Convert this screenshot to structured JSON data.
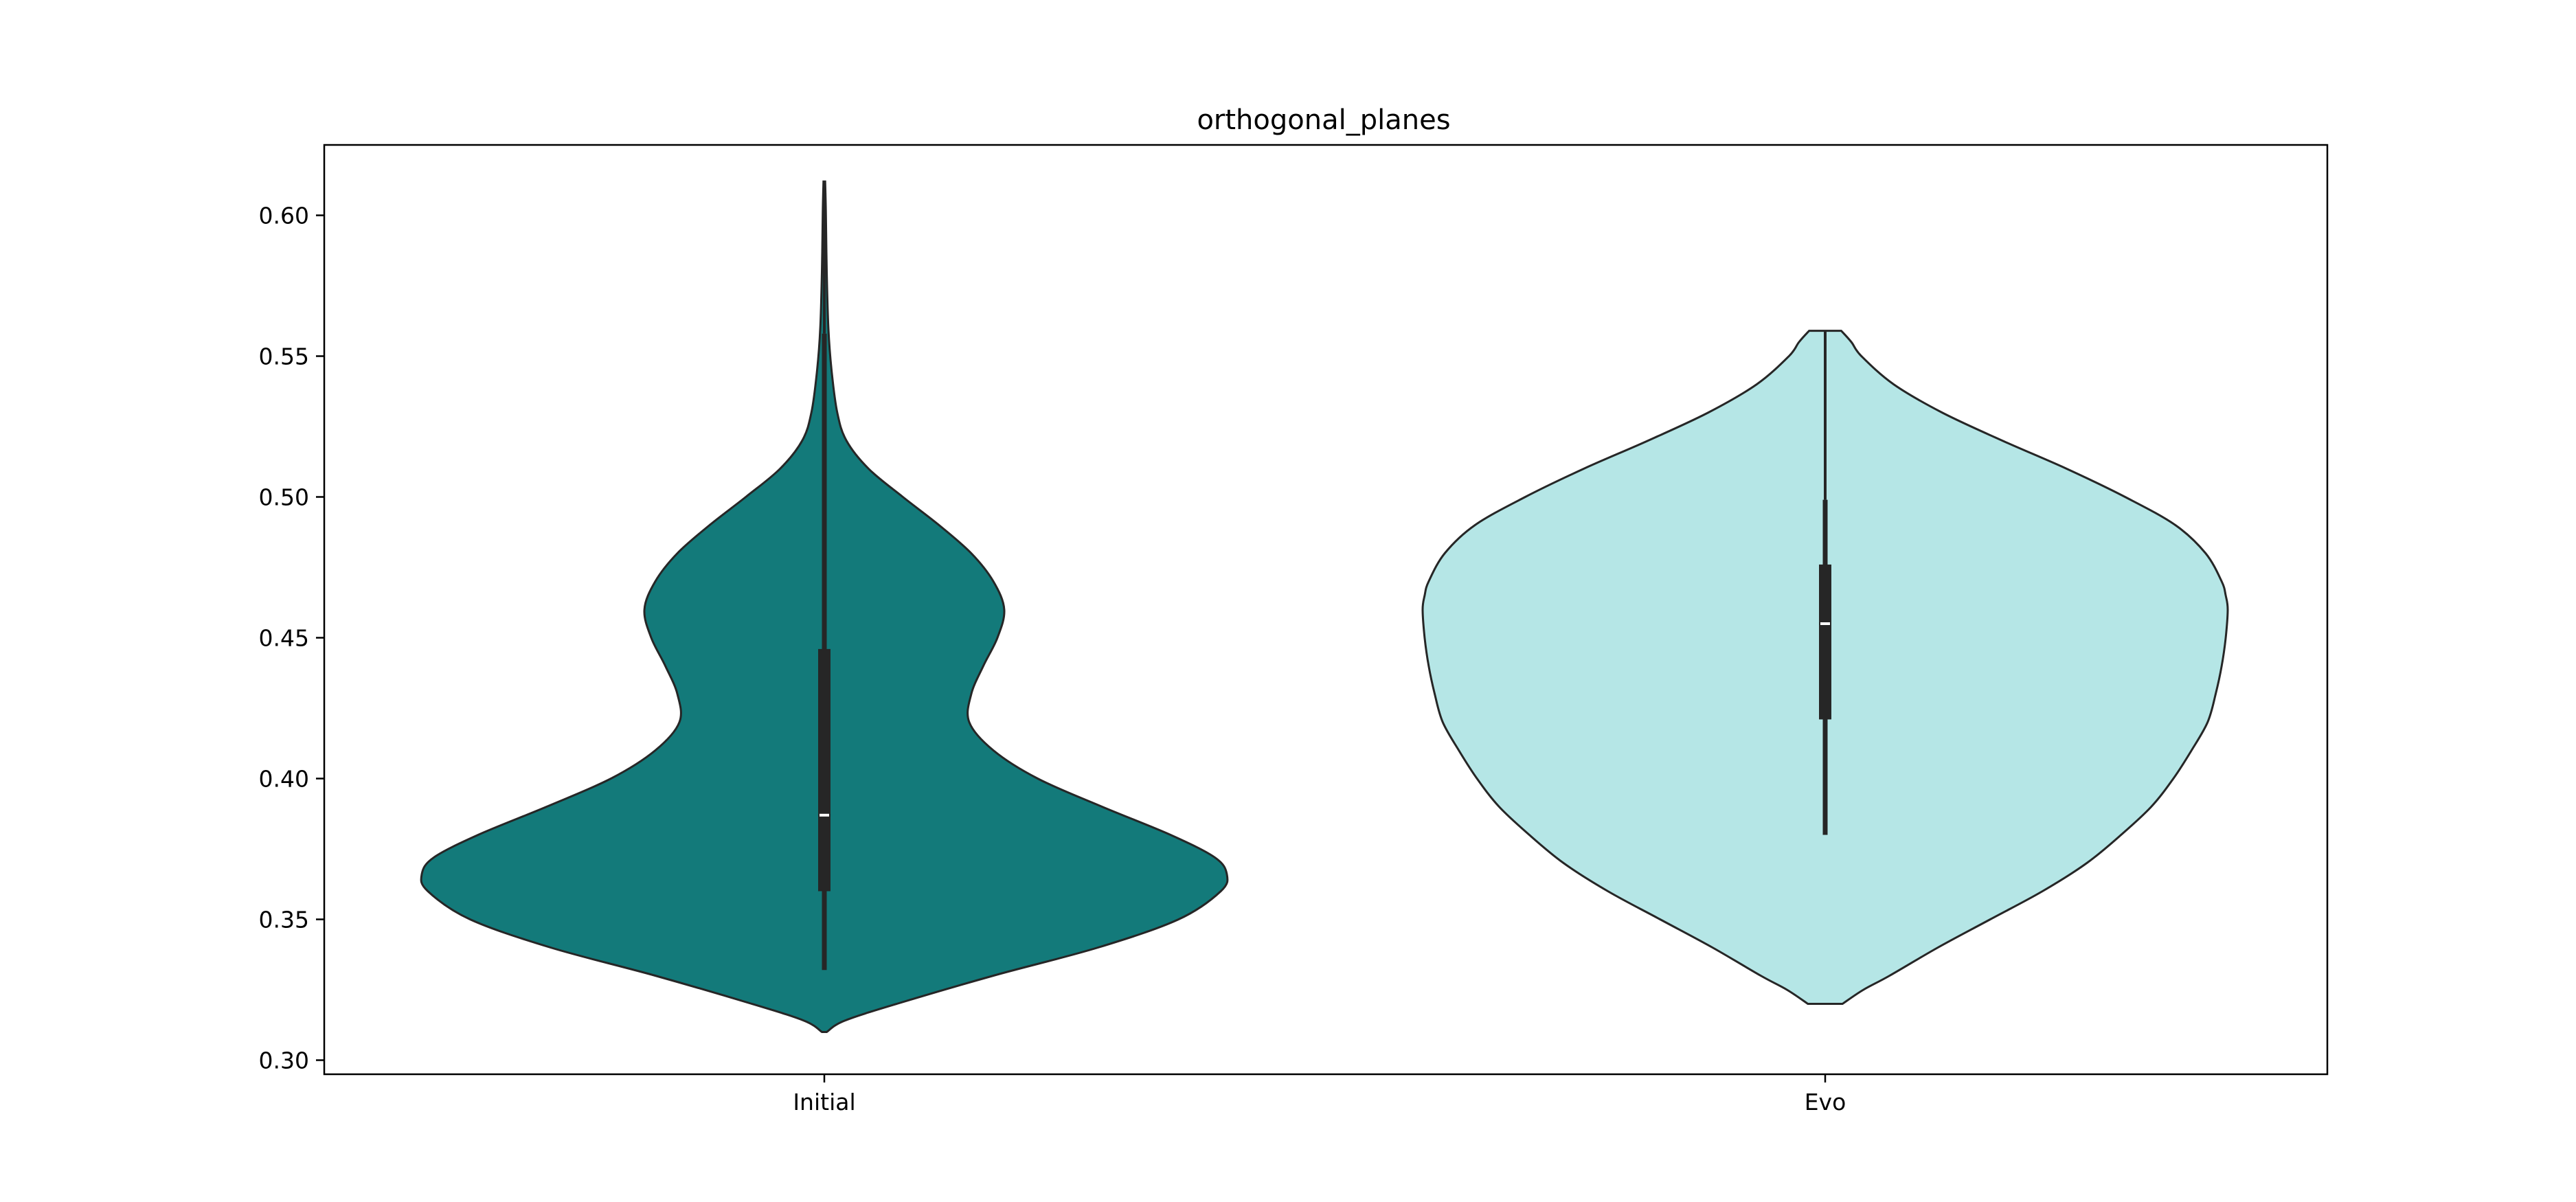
{
  "chart_data": {
    "type": "violin",
    "title": "orthogonal_planes",
    "xlabel": "",
    "ylabel": "",
    "categories": [
      "Initial",
      "Evo"
    ],
    "ylim": [
      0.295,
      0.625
    ],
    "yticks": [
      0.3,
      0.35,
      0.4,
      0.45,
      0.5,
      0.55,
      0.6
    ],
    "ytick_labels": [
      "0.30",
      "0.35",
      "0.40",
      "0.45",
      "0.50",
      "0.55",
      "0.60"
    ],
    "grid": false,
    "series": [
      {
        "category": "Initial",
        "color": "#137a7a",
        "range": [
          0.31,
          0.612
        ],
        "whisker": [
          0.332,
          0.558
        ],
        "quartiles": [
          0.36,
          0.446
        ],
        "median": 0.387,
        "density": [
          [
            0.31,
            0.006
          ],
          [
            0.314,
            0.05
          ],
          [
            0.32,
            0.18
          ],
          [
            0.33,
            0.42
          ],
          [
            0.34,
            0.68
          ],
          [
            0.35,
            0.88
          ],
          [
            0.36,
            0.985
          ],
          [
            0.366,
            1.0
          ],
          [
            0.372,
            0.97
          ],
          [
            0.38,
            0.86
          ],
          [
            0.39,
            0.69
          ],
          [
            0.4,
            0.53
          ],
          [
            0.41,
            0.42
          ],
          [
            0.42,
            0.36
          ],
          [
            0.43,
            0.365
          ],
          [
            0.44,
            0.395
          ],
          [
            0.45,
            0.43
          ],
          [
            0.46,
            0.447
          ],
          [
            0.47,
            0.42
          ],
          [
            0.48,
            0.365
          ],
          [
            0.49,
            0.285
          ],
          [
            0.5,
            0.195
          ],
          [
            0.51,
            0.11
          ],
          [
            0.52,
            0.055
          ],
          [
            0.53,
            0.032
          ],
          [
            0.545,
            0.018
          ],
          [
            0.56,
            0.01
          ],
          [
            0.58,
            0.006
          ],
          [
            0.6,
            0.004
          ],
          [
            0.612,
            0.002
          ]
        ]
      },
      {
        "category": "Evo",
        "color": "#b5e6e6",
        "range": [
          0.32,
          0.559
        ],
        "whisker": [
          0.38,
          0.499
        ],
        "quartiles": [
          0.421,
          0.476
        ],
        "median": 0.455,
        "density": [
          [
            0.32,
            0.043
          ],
          [
            0.325,
            0.095
          ],
          [
            0.33,
            0.16
          ],
          [
            0.34,
            0.28
          ],
          [
            0.35,
            0.41
          ],
          [
            0.36,
            0.54
          ],
          [
            0.37,
            0.65
          ],
          [
            0.38,
            0.735
          ],
          [
            0.39,
            0.81
          ],
          [
            0.4,
            0.865
          ],
          [
            0.41,
            0.91
          ],
          [
            0.42,
            0.95
          ],
          [
            0.43,
            0.97
          ],
          [
            0.44,
            0.985
          ],
          [
            0.45,
            0.995
          ],
          [
            0.46,
            1.0
          ],
          [
            0.465,
            0.995
          ],
          [
            0.47,
            0.985
          ],
          [
            0.48,
            0.945
          ],
          [
            0.49,
            0.87
          ],
          [
            0.5,
            0.745
          ],
          [
            0.51,
            0.6
          ],
          [
            0.52,
            0.44
          ],
          [
            0.53,
            0.29
          ],
          [
            0.54,
            0.17
          ],
          [
            0.55,
            0.09
          ],
          [
            0.555,
            0.065
          ],
          [
            0.559,
            0.04
          ]
        ]
      }
    ]
  }
}
